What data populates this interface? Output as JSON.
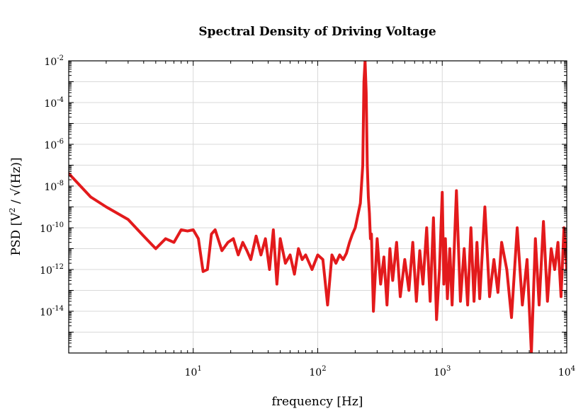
{
  "chart_data": {
    "type": "line",
    "title": "Spectral Density of Driving Voltage",
    "xlabel": "frequency [Hz]",
    "ylabel": "PSD [V^2 / √(Hz)]",
    "ylabel_parts": {
      "pre": "PSD [V",
      "sup": "2",
      "post": " / √(Hz)]"
    },
    "xscale": "log",
    "yscale": "log",
    "xlim": [
      1,
      10000
    ],
    "ylim": [
      1e-16,
      0.01
    ],
    "grid": true,
    "line_color": "#e31a1c",
    "x_ticks": [
      {
        "value": 10,
        "base": "10",
        "exp": "1"
      },
      {
        "value": 100,
        "base": "10",
        "exp": "2"
      },
      {
        "value": 1000,
        "base": "10",
        "exp": "3"
      },
      {
        "value": 10000,
        "base": "10",
        "exp": "4"
      }
    ],
    "y_ticks": [
      {
        "value": 0.01,
        "base": "10",
        "exp": "-2"
      },
      {
        "value": 0.0001,
        "base": "10",
        "exp": "-4"
      },
      {
        "value": 1e-06,
        "base": "10",
        "exp": "-6"
      },
      {
        "value": 1e-08,
        "base": "10",
        "exp": "-8"
      },
      {
        "value": 1e-10,
        "base": "10",
        "exp": "-10"
      },
      {
        "value": 1e-12,
        "base": "10",
        "exp": "-12"
      },
      {
        "value": 1e-14,
        "base": "10",
        "exp": "-14"
      }
    ],
    "series": [
      {
        "name": "PSD",
        "x": [
          1.0,
          1.5,
          2.0,
          3.0,
          4.0,
          5.0,
          6.0,
          7.0,
          8.0,
          9.0,
          10.0,
          11.0,
          12.0,
          13.0,
          14.0,
          15.0,
          17.0,
          19.0,
          21.0,
          23.0,
          25.0,
          27.0,
          29.0,
          32.0,
          35.0,
          38.0,
          41.0,
          44.0,
          47.0,
          50.0,
          55.0,
          60.0,
          65.0,
          70.0,
          75.0,
          80.0,
          90.0,
          100.0,
          110.0,
          120.0,
          130.0,
          140.0,
          150.0,
          160.0,
          170.0,
          180.0,
          190.0,
          200.0,
          210.0,
          220.0,
          230.0,
          235.0,
          240.0,
          245.0,
          250.0,
          255.0,
          260.0,
          265.0,
          270.0,
          280.0,
          300.0,
          320.0,
          340.0,
          360.0,
          380.0,
          400.0,
          430.0,
          460.0,
          500.0,
          540.0,
          580.0,
          620.0,
          660.0,
          700.0,
          750.0,
          800.0,
          850.0,
          900.0,
          950.0,
          1000.0,
          1030.0,
          1060.0,
          1100.0,
          1150.0,
          1200.0,
          1300.0,
          1400.0,
          1500.0,
          1600.0,
          1700.0,
          1800.0,
          1900.0,
          2000.0,
          2200.0,
          2400.0,
          2600.0,
          2800.0,
          3000.0,
          3300.0,
          3600.0,
          4000.0,
          4400.0,
          4800.0,
          5200.0,
          5600.0,
          6000.0,
          6500.0,
          7000.0,
          7500.0,
          8000.0,
          8500.0,
          9000.0,
          9500.0,
          10000.0
        ],
        "y": [
          4e-08,
          3e-09,
          1e-09,
          2.5e-10,
          4e-11,
          1e-11,
          3e-11,
          2e-11,
          8e-11,
          7e-11,
          8e-11,
          3e-11,
          8e-13,
          1e-12,
          5e-11,
          8e-11,
          8e-12,
          2e-11,
          3e-11,
          5e-12,
          2e-11,
          8e-12,
          3e-12,
          4e-11,
          5e-12,
          3e-11,
          1e-12,
          8e-11,
          2e-13,
          3e-11,
          2e-12,
          5e-12,
          6e-13,
          1e-11,
          3e-12,
          5e-12,
          1e-12,
          5e-12,
          3e-12,
          2e-14,
          5e-12,
          2e-12,
          5e-12,
          3e-12,
          6e-12,
          2e-11,
          5e-11,
          1e-10,
          4e-10,
          1.5e-09,
          1e-07,
          0.001,
          0.01,
          0.0003,
          1e-07,
          3e-09,
          5e-10,
          3e-11,
          5e-11,
          1e-14,
          3e-11,
          2e-13,
          4e-12,
          2e-14,
          1e-11,
          3e-13,
          2e-11,
          5e-14,
          3e-12,
          1e-13,
          2e-11,
          3e-14,
          8e-12,
          2e-13,
          1e-10,
          3e-14,
          3e-10,
          4e-15,
          1e-12,
          5e-09,
          2e-13,
          3e-11,
          4e-14,
          1e-11,
          2e-14,
          6e-09,
          3e-14,
          1e-11,
          2e-14,
          1e-10,
          3e-14,
          2e-11,
          4e-14,
          1e-09,
          5e-14,
          3e-12,
          8e-14,
          2e-11,
          1e-12,
          5e-15,
          1e-10,
          2e-14,
          3e-12,
          1e-16,
          3e-11,
          2e-14,
          2e-10,
          3e-14,
          1e-11,
          1e-12,
          2e-11,
          5e-14,
          1e-10,
          1e-12
        ]
      }
    ]
  }
}
